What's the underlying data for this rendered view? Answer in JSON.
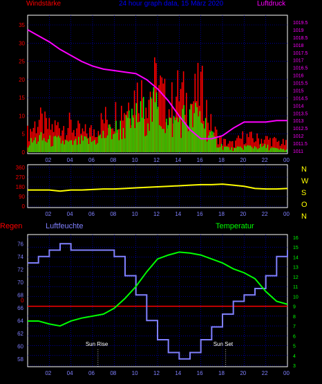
{
  "header": {
    "title": "24 hour graph data, 15 März 2020",
    "left_label": "Windstärke",
    "right_label": "Luftdruck"
  },
  "colors": {
    "wind_max": "#ff0000",
    "wind_avg": "#00ff00",
    "pressure": "#ff00ff",
    "direction": "#ffff00",
    "humidity": "#8080ff",
    "temperature": "#00ff00",
    "rain": "#ff0000",
    "grid": "#0000ff",
    "axis_text_left": "#ff0000",
    "axis_text_right": "#ff00ff",
    "hum_axis_text": "#8080ff",
    "temp_axis_text": "#00ff00",
    "x_text": "#8080ff",
    "title_text": "#0000ff"
  },
  "chart_data": [
    {
      "type": "line",
      "title": "24 hour graph data, 15 März 2020",
      "x_ticks": [
        "02",
        "04",
        "06",
        "08",
        "10",
        "12",
        "14",
        "16",
        "18",
        "20",
        "22",
        "00"
      ],
      "left_axis": {
        "label": "Windstärke",
        "ticks": [
          "0",
          "5",
          "10",
          "15",
          "20",
          "25",
          "30",
          "35"
        ],
        "ylim": [
          0,
          35
        ]
      },
      "right_axis": {
        "label": "Luftdruck",
        "ticks": [
          "1011",
          "1011.5",
          "1012",
          "1012.5",
          "1013",
          "1013.5",
          "1014",
          "1014.5",
          "1015",
          "1015.5",
          "1016",
          "1016.5",
          "1017",
          "1017.5",
          "1018",
          "1018.5",
          "1019",
          "1019.5"
        ],
        "ylim": [
          1011,
          1019.5
        ]
      },
      "series": [
        {
          "name": "Luftdruck",
          "axis": "right",
          "x": [
            0,
            1,
            2,
            3,
            4,
            5,
            6,
            7,
            8,
            9,
            10,
            11,
            12,
            13,
            14,
            15,
            16,
            17,
            18,
            19,
            20,
            21,
            22,
            23,
            24
          ],
          "values": [
            1019,
            1018.6,
            1018.2,
            1017.7,
            1017.3,
            1016.9,
            1016.6,
            1016.4,
            1016.3,
            1016.2,
            1016.1,
            1015.7,
            1015.1,
            1014.3,
            1013.3,
            1012.4,
            1011.8,
            1011.8,
            1012,
            1012.5,
            1012.9,
            1012.9,
            1012.9,
            1013,
            1013
          ]
        },
        {
          "name": "wind max",
          "axis": "left",
          "x": [
            0,
            1,
            2,
            3,
            4,
            5,
            6,
            7,
            8,
            9,
            10,
            11,
            12,
            13,
            14,
            15,
            16,
            17,
            18,
            19,
            20,
            21,
            22,
            23,
            24
          ],
          "values": [
            7,
            12,
            9,
            10,
            10,
            7,
            8,
            12,
            14,
            17,
            22,
            22,
            26,
            16,
            23,
            18,
            24,
            9,
            4,
            3,
            6,
            5,
            5,
            4,
            3
          ]
        },
        {
          "name": "wind avg",
          "axis": "left",
          "x": [
            0,
            1,
            2,
            3,
            4,
            5,
            6,
            7,
            8,
            9,
            10,
            11,
            12,
            13,
            14,
            15,
            16,
            17,
            18,
            19,
            20,
            21,
            22,
            23,
            24
          ],
          "values": [
            3,
            5,
            4,
            4,
            3,
            4,
            4,
            6,
            8,
            9,
            12,
            14,
            16,
            9,
            12,
            12,
            13,
            5,
            2,
            1,
            2,
            2,
            2,
            1,
            1
          ]
        }
      ]
    },
    {
      "type": "line",
      "x_ticks": [
        "02",
        "04",
        "06",
        "08",
        "10",
        "12",
        "14",
        "16",
        "18",
        "20",
        "22",
        "00"
      ],
      "left_axis": {
        "ticks": [
          "0",
          "90",
          "180",
          "270",
          "360"
        ],
        "ylim": [
          0,
          360
        ]
      },
      "right_axis": {
        "ticks": [
          "N",
          "W",
          "S",
          "O",
          "N"
        ]
      },
      "series": [
        {
          "name": "wind direction",
          "x": [
            0,
            1,
            2,
            3,
            4,
            5,
            6,
            7,
            8,
            9,
            10,
            11,
            12,
            13,
            14,
            15,
            16,
            17,
            18,
            19,
            20,
            21,
            22,
            23,
            24
          ],
          "values": [
            150,
            150,
            150,
            140,
            150,
            150,
            155,
            160,
            160,
            165,
            170,
            175,
            180,
            185,
            190,
            195,
            200,
            200,
            205,
            195,
            185,
            165,
            160,
            160,
            165
          ]
        }
      ]
    },
    {
      "type": "line",
      "left_label": "Luftfeuchte",
      "right_label": "Temperatur",
      "rain_label": "Regen",
      "rain_value": "0",
      "x_ticks": [
        "02",
        "04",
        "06",
        "08",
        "10",
        "12",
        "14",
        "16",
        "18",
        "20",
        "22",
        "00"
      ],
      "left_axis": {
        "ticks": [
          "58",
          "60",
          "62",
          "64",
          "66",
          "68",
          "70",
          "72",
          "74",
          "76"
        ],
        "ylim": [
          57,
          77
        ]
      },
      "right_axis": {
        "ticks": [
          "3",
          "4",
          "5",
          "6",
          "7",
          "8",
          "9",
          "10",
          "11",
          "12",
          "13",
          "14",
          "15",
          "16"
        ],
        "ylim": [
          3,
          16
        ]
      },
      "annotations": [
        {
          "label": "Sun Rise",
          "x": 6.5
        },
        {
          "label": "Sun Set",
          "x": 18.3
        }
      ],
      "series": [
        {
          "name": "Luftfeuchte",
          "axis": "left",
          "x": [
            0,
            1,
            2,
            3,
            4,
            5,
            6,
            7,
            8,
            9,
            10,
            11,
            12,
            13,
            14,
            15,
            16,
            17,
            18,
            19,
            20,
            21,
            22,
            23,
            24
          ],
          "values": [
            73,
            74,
            75,
            76,
            75,
            75,
            75,
            75,
            74,
            71,
            68,
            64,
            61,
            59,
            58,
            59,
            61,
            63,
            65,
            67,
            68,
            69,
            71,
            74,
            75
          ]
        },
        {
          "name": "Temperatur",
          "axis": "right",
          "x": [
            0,
            1,
            2,
            3,
            4,
            5,
            6,
            7,
            8,
            9,
            10,
            11,
            12,
            13,
            14,
            15,
            16,
            17,
            18,
            19,
            20,
            21,
            22,
            23,
            24
          ],
          "values": [
            7.5,
            7.5,
            7.2,
            7,
            7.5,
            7.8,
            8,
            8.2,
            8.8,
            9.8,
            11,
            12.5,
            13.8,
            14.2,
            14.5,
            14.4,
            14.2,
            13.8,
            13.4,
            12.8,
            12.4,
            11.8,
            10.5,
            9.5,
            9.2
          ]
        }
      ]
    }
  ]
}
